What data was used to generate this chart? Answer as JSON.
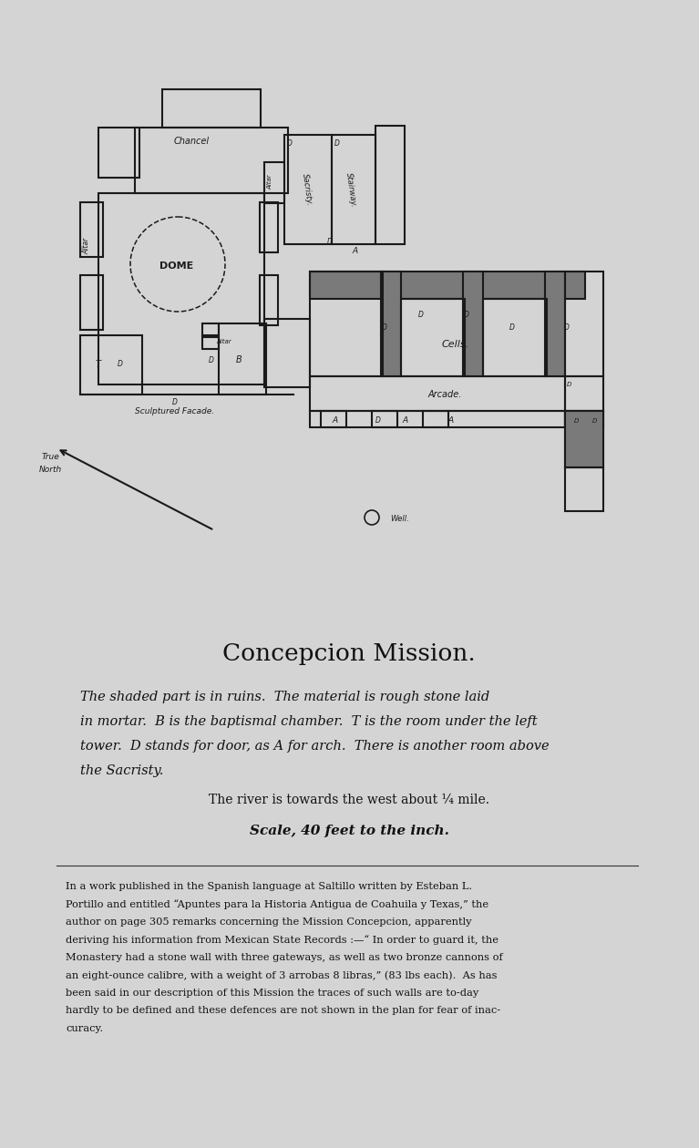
{
  "bg_color": "#d4d4d4",
  "line_color": "#1a1a1a",
  "shade_color": "#7a7a7a",
  "wall_lw": 1.5,
  "title": "Concepcion Mission.",
  "subtitle_lines": [
    "The shaded part is in ruins.  The material is rough stone laid",
    "in mortar.  B is the baptismal chamber.  T is the room under the left",
    "tower.  D stands for door, as A for arch.  There is another room above",
    "the Sacristy."
  ],
  "river_line": "The river is towards the west about ¼ mile.",
  "scale_line": "Scale, 40 feet to the inch.",
  "footnote_lines": [
    "In a work published in the Spanish language at Saltillo written by Esteban L.",
    "Portillo and entitled “Apuntes para la Historia Antigua de Coahuila y Texas,” the",
    "author on page 305 remarks concerning the Mission Concepcion, apparently",
    "deriving his information from Mexican State Records :—“ In order to guard it, the",
    "Monastery had a stone wall with three gateways, as well as two bronze cannons of",
    "an eight-ounce calibre, with a weight of 3 arrobas 8 libras,” (83 lbs each).  As has",
    "been said in our description of this Mission the traces of such walls are to-day",
    "hardly to be defined and these defences are not shown in the plan for fear of inac-",
    "curacy."
  ]
}
